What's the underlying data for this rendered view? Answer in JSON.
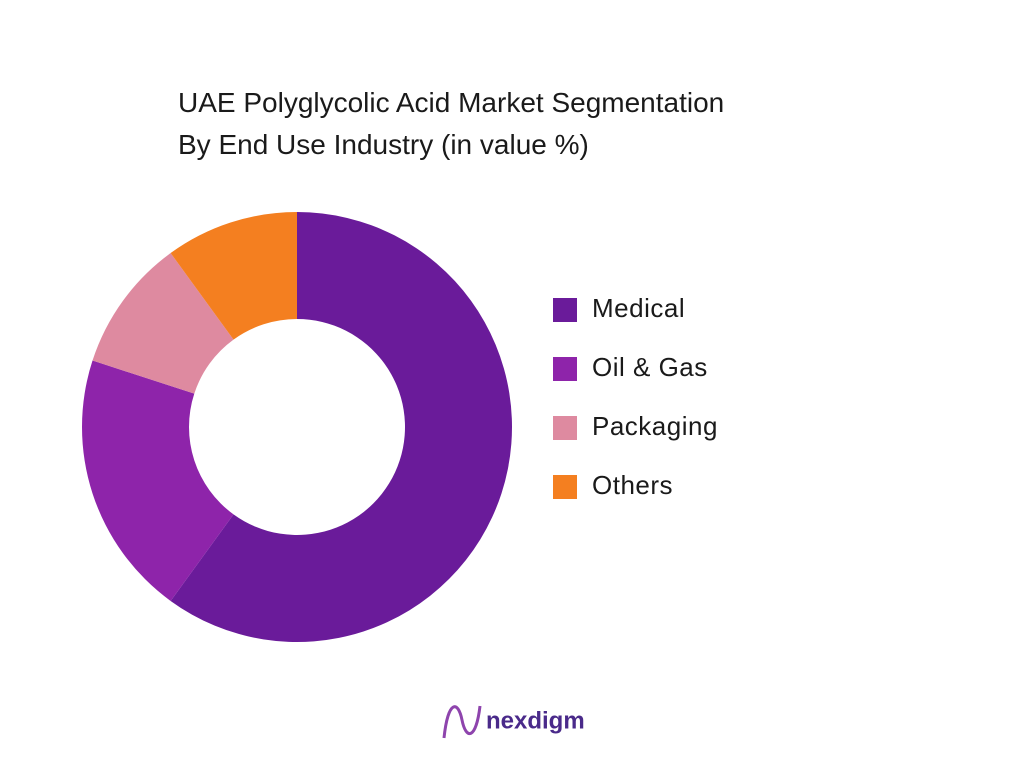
{
  "chart_data": {
    "type": "donut",
    "title": [
      "UAE Polyglycolic Acid Market Segmentation",
      "By End Use Industry (in value %)"
    ],
    "categories": [
      "Medical",
      "Oil & Gas",
      "Packaging",
      "Others"
    ],
    "values": [
      60,
      20,
      10,
      10
    ],
    "colors": [
      "#6a1b9a",
      "#8e24aa",
      "#de8aa0",
      "#f47f20"
    ],
    "legend": "right"
  },
  "logo": "nexdigm"
}
